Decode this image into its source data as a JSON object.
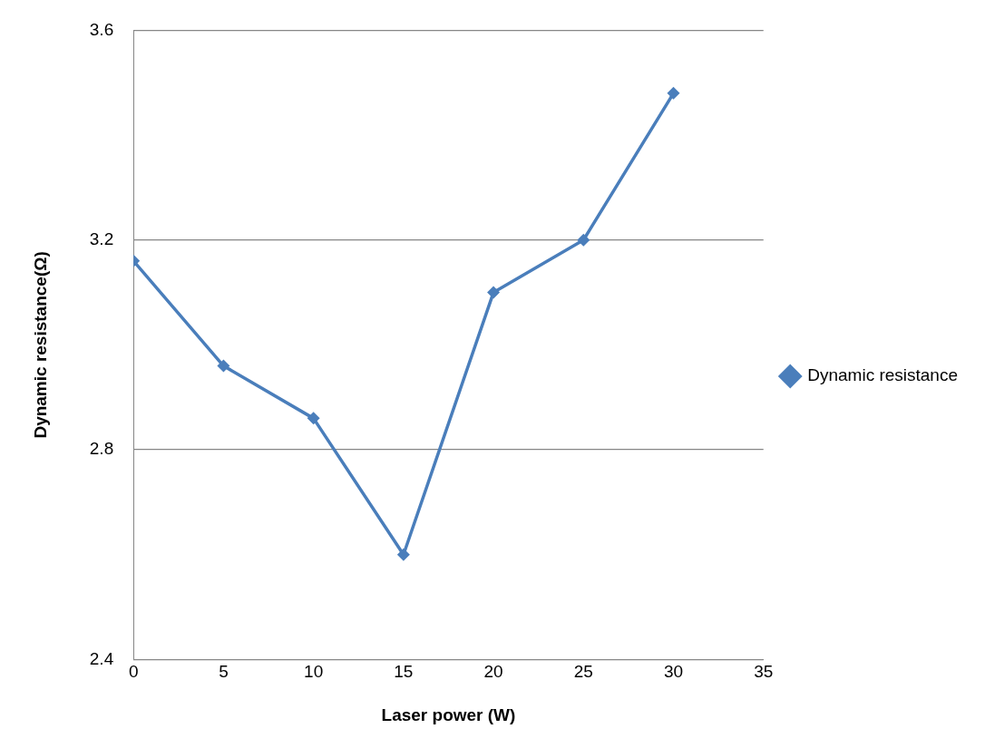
{
  "chart_data": {
    "type": "line",
    "xlabel": "Laser power (W)",
    "ylabel": "Dynamic resistance(Ω)",
    "x": [
      0,
      5,
      10,
      15,
      20,
      25,
      30
    ],
    "series": [
      {
        "name": "Dynamic resistance",
        "color": "#4a7ebb",
        "values": [
          3.16,
          2.96,
          2.86,
          2.6,
          3.1,
          3.2,
          3.48
        ]
      }
    ],
    "xlim": [
      0,
      35
    ],
    "xticks": [
      0,
      5,
      10,
      15,
      20,
      25,
      30,
      35
    ],
    "ylim": [
      2.4,
      3.6
    ],
    "yticks": [
      2.4,
      2.8,
      3.2,
      3.6
    ],
    "grid": "y",
    "legend": "right",
    "marker": "diamond",
    "line_style": "solid"
  }
}
